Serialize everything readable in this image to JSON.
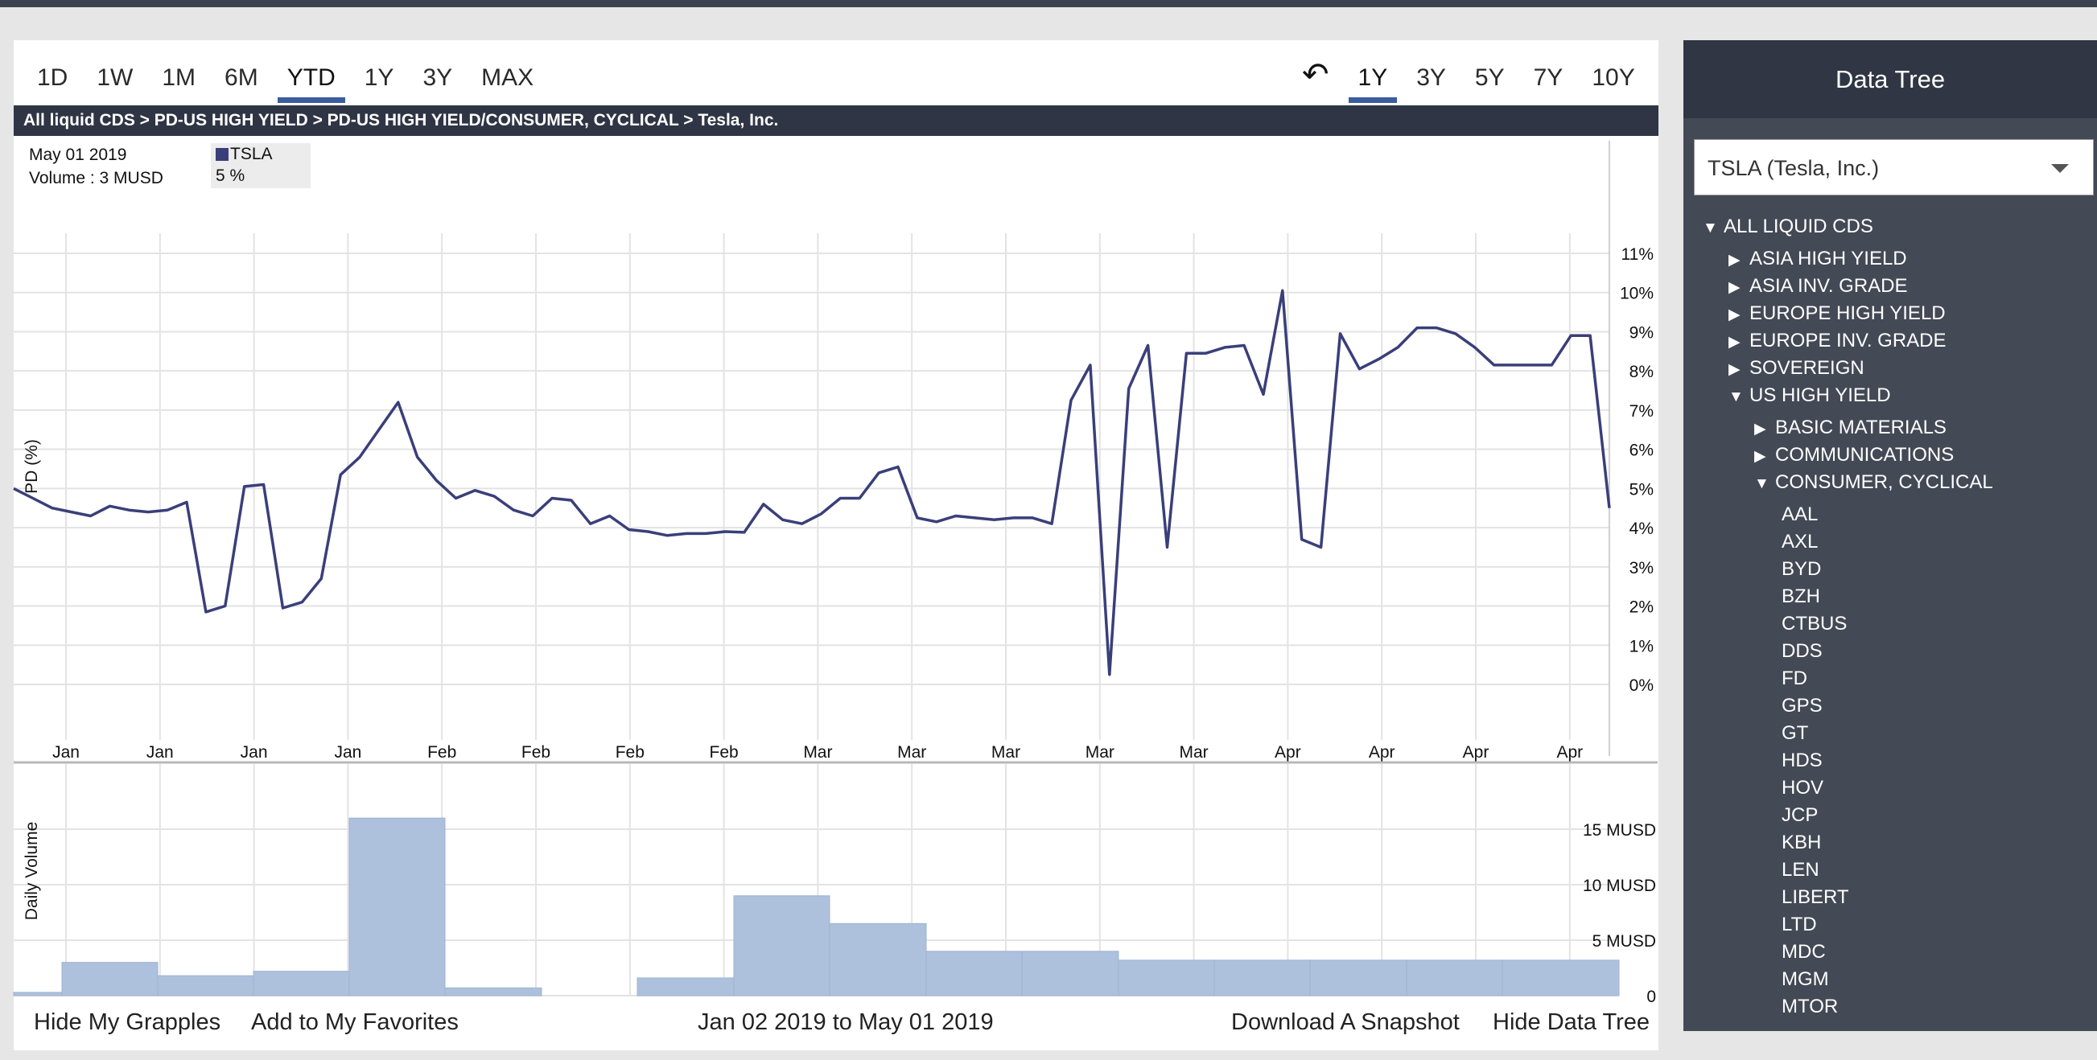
{
  "range_tabs_left": [
    "1D",
    "1W",
    "1M",
    "6M",
    "YTD",
    "1Y",
    "3Y",
    "MAX"
  ],
  "active_left": "YTD",
  "range_tabs_right": [
    "1Y",
    "3Y",
    "5Y",
    "7Y",
    "10Y"
  ],
  "active_right": "1Y",
  "breadcrumb": "All liquid CDS > PD-US HIGH YIELD > PD-US HIGH YIELD/CONSUMER, CYCLICAL > Tesla, Inc.",
  "info": {
    "date": "May 01 2019",
    "volume": "Volume : 3 MUSD"
  },
  "legend": {
    "name": "TSLA",
    "value": "5 %"
  },
  "footer": {
    "hide_grapples": "Hide My Grapples",
    "add_favorites": "Add to My Favorites",
    "date_range": "Jan 02 2019 to May 01 2019",
    "download": "Download A Snapshot",
    "hide_tree": "Hide Data Tree"
  },
  "sidebar": {
    "title": "Data Tree",
    "selected": "TSLA (Tesla, Inc.)",
    "tree": [
      {
        "label": "ALL LIQUID CDS",
        "level": 0,
        "state": "open"
      },
      {
        "label": "ASIA HIGH YIELD",
        "level": 1,
        "state": "closed"
      },
      {
        "label": "ASIA INV. GRADE",
        "level": 1,
        "state": "closed"
      },
      {
        "label": "EUROPE HIGH YIELD",
        "level": 1,
        "state": "closed"
      },
      {
        "label": "EUROPE INV. GRADE",
        "level": 1,
        "state": "closed"
      },
      {
        "label": "SOVEREIGN",
        "level": 1,
        "state": "closed"
      },
      {
        "label": "US HIGH YIELD",
        "level": 1,
        "state": "open"
      },
      {
        "label": "BASIC MATERIALS",
        "level": 2,
        "state": "closed"
      },
      {
        "label": "COMMUNICATIONS",
        "level": 2,
        "state": "closed"
      },
      {
        "label": "CONSUMER, CYCLICAL",
        "level": 2,
        "state": "open"
      },
      {
        "label": "AAL",
        "level": 3,
        "state": "leaf"
      },
      {
        "label": "AXL",
        "level": 3,
        "state": "leaf"
      },
      {
        "label": "BYD",
        "level": 3,
        "state": "leaf"
      },
      {
        "label": "BZH",
        "level": 3,
        "state": "leaf"
      },
      {
        "label": "CTBUS",
        "level": 3,
        "state": "leaf"
      },
      {
        "label": "DDS",
        "level": 3,
        "state": "leaf"
      },
      {
        "label": "FD",
        "level": 3,
        "state": "leaf"
      },
      {
        "label": "GPS",
        "level": 3,
        "state": "leaf"
      },
      {
        "label": "GT",
        "level": 3,
        "state": "leaf"
      },
      {
        "label": "HDS",
        "level": 3,
        "state": "leaf"
      },
      {
        "label": "HOV",
        "level": 3,
        "state": "leaf"
      },
      {
        "label": "JCP",
        "level": 3,
        "state": "leaf"
      },
      {
        "label": "KBH",
        "level": 3,
        "state": "leaf"
      },
      {
        "label": "LEN",
        "level": 3,
        "state": "leaf"
      },
      {
        "label": "LIBERT",
        "level": 3,
        "state": "leaf"
      },
      {
        "label": "LTD",
        "level": 3,
        "state": "leaf"
      },
      {
        "label": "MDC",
        "level": 3,
        "state": "leaf"
      },
      {
        "label": "MGM",
        "level": 3,
        "state": "leaf"
      },
      {
        "label": "MTOR",
        "level": 3,
        "state": "leaf"
      }
    ]
  },
  "colors": {
    "line": "#3a3f7a",
    "bars": "#adc0dc",
    "grid": "#e3e3e3",
    "accent": "#3b5c9e",
    "header_dark": "#2f3544",
    "sidebar": "#434955"
  },
  "chart_data": [
    {
      "type": "line",
      "ylabel": "PD (%)",
      "ylim": [
        0,
        11
      ],
      "yticks": [
        "0%",
        "1%",
        "2%",
        "3%",
        "4%",
        "5%",
        "6%",
        "7%",
        "8%",
        "9%",
        "10%",
        "11%"
      ],
      "xticks": [
        "Jan",
        "Jan",
        "Jan",
        "Jan",
        "Feb",
        "Feb",
        "Feb",
        "Feb",
        "Mar",
        "Mar",
        "Mar",
        "Mar",
        "Mar",
        "Apr",
        "Apr",
        "Apr",
        "Apr"
      ],
      "grid": true,
      "series": [
        {
          "name": "TSLA",
          "values": [
            5.0,
            4.75,
            4.5,
            4.4,
            4.3,
            4.55,
            4.45,
            4.4,
            4.45,
            4.65,
            1.85,
            2.0,
            5.05,
            5.1,
            1.95,
            2.1,
            2.7,
            5.35,
            5.8,
            6.5,
            7.2,
            5.8,
            5.2,
            4.75,
            4.95,
            4.8,
            4.45,
            4.3,
            4.75,
            4.7,
            4.1,
            4.3,
            3.95,
            3.9,
            3.8,
            3.85,
            3.85,
            3.9,
            3.88,
            4.6,
            4.2,
            4.1,
            4.35,
            4.75,
            4.75,
            5.4,
            5.55,
            4.25,
            4.15,
            4.3,
            4.25,
            4.2,
            4.25,
            4.25,
            4.1,
            7.25,
            8.15,
            0.25,
            7.55,
            8.65,
            3.5,
            8.45,
            8.45,
            8.6,
            8.65,
            7.4,
            10.05,
            3.7,
            3.5,
            8.95,
            8.05,
            8.3,
            8.6,
            9.1,
            9.1,
            8.95,
            8.6,
            8.15,
            8.15,
            8.15,
            8.15,
            8.9,
            8.9,
            4.5
          ]
        }
      ]
    },
    {
      "type": "bar",
      "ylabel": "Daily Volume",
      "ylim": [
        0,
        16
      ],
      "yticks": [
        "0",
        "5 MUSD",
        "10 MUSD",
        "15 MUSD"
      ],
      "series": [
        {
          "name": "",
          "values": [
            0.3,
            3.0,
            1.8,
            2.2,
            16.0,
            0.7,
            0,
            1.6,
            9.0,
            6.5,
            4.0,
            4.0,
            3.2,
            3.2,
            3.2,
            3.2,
            3.2
          ]
        }
      ]
    }
  ]
}
